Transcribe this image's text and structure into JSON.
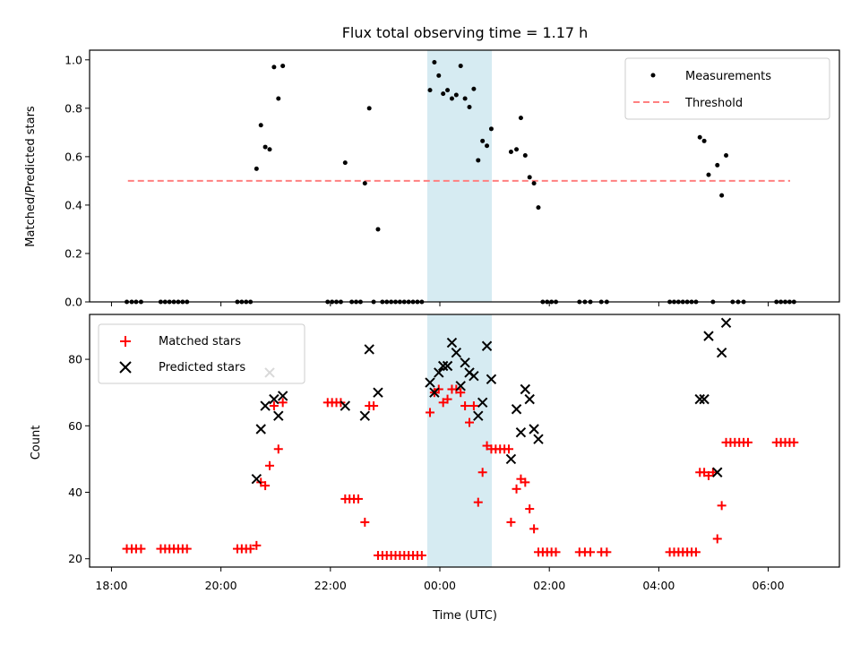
{
  "title": "Flux total observing time = 1.17 h",
  "colors": {
    "measurement": "#000000",
    "threshold": "#ff8080",
    "matched": "#ff0000",
    "predicted": "#000000",
    "window": "#add8e6"
  },
  "chart_data": [
    {
      "type": "scatter",
      "panel": "top",
      "ylabel": "Matched/Predicted stars",
      "xlim": [
        17.6,
        31.3
      ],
      "ylim": [
        0,
        1.04
      ],
      "yticks": [
        "0.0",
        "0.2",
        "0.4",
        "0.6",
        "0.8",
        "1.0"
      ],
      "shaded_interval": [
        23.77,
        24.95
      ],
      "legend": {
        "placement": "top-right",
        "entries": [
          "Measurements",
          "Threshold"
        ]
      },
      "threshold": {
        "name": "Threshold",
        "value": 0.5,
        "x": [
          18.3,
          30.4
        ]
      },
      "series": [
        {
          "name": "Measurements",
          "marker": "dot",
          "points": [
            [
              18.28,
              0
            ],
            [
              18.37,
              0
            ],
            [
              18.45,
              0
            ],
            [
              18.54,
              0
            ],
            [
              18.9,
              0
            ],
            [
              18.98,
              0
            ],
            [
              19.06,
              0
            ],
            [
              19.14,
              0
            ],
            [
              19.22,
              0
            ],
            [
              19.3,
              0
            ],
            [
              19.38,
              0
            ],
            [
              20.3,
              0
            ],
            [
              20.38,
              0
            ],
            [
              20.46,
              0
            ],
            [
              20.54,
              0
            ],
            [
              20.65,
              0.55
            ],
            [
              20.73,
              0.73
            ],
            [
              20.81,
              0.64
            ],
            [
              20.89,
              0.63
            ],
            [
              20.97,
              0.97
            ],
            [
              21.05,
              0.84
            ],
            [
              21.13,
              0.975
            ],
            [
              21.95,
              0
            ],
            [
              22.03,
              0
            ],
            [
              22.11,
              0
            ],
            [
              22.19,
              0
            ],
            [
              22.27,
              0.575
            ],
            [
              22.39,
              0
            ],
            [
              22.47,
              0
            ],
            [
              22.55,
              0
            ],
            [
              22.63,
              0.49
            ],
            [
              22.71,
              0.8
            ],
            [
              22.79,
              0
            ],
            [
              22.87,
              0.3
            ],
            [
              22.95,
              0
            ],
            [
              23.03,
              0
            ],
            [
              23.11,
              0
            ],
            [
              23.19,
              0
            ],
            [
              23.27,
              0
            ],
            [
              23.35,
              0
            ],
            [
              23.43,
              0
            ],
            [
              23.51,
              0
            ],
            [
              23.59,
              0
            ],
            [
              23.67,
              0
            ],
            [
              23.82,
              0.875
            ],
            [
              23.9,
              0.99
            ],
            [
              23.98,
              0.935
            ],
            [
              24.06,
              0.86
            ],
            [
              24.14,
              0.875
            ],
            [
              24.22,
              0.84
            ],
            [
              24.3,
              0.855
            ],
            [
              24.38,
              0.975
            ],
            [
              24.46,
              0.84
            ],
            [
              24.54,
              0.805
            ],
            [
              24.62,
              0.88
            ],
            [
              24.7,
              0.585
            ],
            [
              24.78,
              0.665
            ],
            [
              24.86,
              0.645
            ],
            [
              24.94,
              0.715
            ],
            [
              25.3,
              0.62
            ],
            [
              25.4,
              0.63
            ],
            [
              25.48,
              0.76
            ],
            [
              25.56,
              0.605
            ],
            [
              25.64,
              0.515
            ],
            [
              25.72,
              0.49
            ],
            [
              25.8,
              0.39
            ],
            [
              25.88,
              0
            ],
            [
              25.96,
              0
            ],
            [
              26.04,
              0
            ],
            [
              26.12,
              0
            ],
            [
              26.55,
              0
            ],
            [
              26.65,
              0
            ],
            [
              26.75,
              0
            ],
            [
              26.95,
              0
            ],
            [
              27.05,
              0
            ],
            [
              28.2,
              0
            ],
            [
              28.28,
              0
            ],
            [
              28.36,
              0
            ],
            [
              28.44,
              0
            ],
            [
              28.52,
              0
            ],
            [
              28.6,
              0
            ],
            [
              28.68,
              0
            ],
            [
              28.75,
              0.68
            ],
            [
              28.83,
              0.665
            ],
            [
              28.91,
              0.525
            ],
            [
              28.99,
              0
            ],
            [
              29.07,
              0.565
            ],
            [
              29.15,
              0.44
            ],
            [
              29.23,
              0.605
            ],
            [
              29.35,
              0
            ],
            [
              29.45,
              0
            ],
            [
              29.55,
              0
            ],
            [
              30.15,
              0
            ],
            [
              30.23,
              0
            ],
            [
              30.31,
              0
            ],
            [
              30.39,
              0
            ],
            [
              30.47,
              0
            ]
          ]
        }
      ]
    },
    {
      "type": "scatter",
      "panel": "bottom",
      "xlabel": "Time (UTC)",
      "ylabel": "Count",
      "xlim": [
        17.6,
        31.3
      ],
      "ylim": [
        17.5,
        93.5
      ],
      "xticks": [
        {
          "value": 18,
          "label": "18:00"
        },
        {
          "value": 20,
          "label": "20:00"
        },
        {
          "value": 22,
          "label": "22:00"
        },
        {
          "value": 24,
          "label": "00:00"
        },
        {
          "value": 26,
          "label": "02:00"
        },
        {
          "value": 28,
          "label": "04:00"
        },
        {
          "value": 30,
          "label": "06:00"
        }
      ],
      "yticks": [
        "20",
        "40",
        "60",
        "80"
      ],
      "shaded_interval": [
        23.77,
        24.95
      ],
      "legend": {
        "placement": "top-left",
        "entries": [
          "Matched stars",
          "Predicted stars"
        ]
      },
      "series": [
        {
          "name": "Matched stars",
          "marker": "plus",
          "points": [
            [
              18.28,
              23
            ],
            [
              18.37,
              23
            ],
            [
              18.45,
              23
            ],
            [
              18.54,
              23
            ],
            [
              18.9,
              23
            ],
            [
              18.98,
              23
            ],
            [
              19.06,
              23
            ],
            [
              19.14,
              23
            ],
            [
              19.22,
              23
            ],
            [
              19.3,
              23
            ],
            [
              19.38,
              23
            ],
            [
              20.3,
              23
            ],
            [
              20.38,
              23
            ],
            [
              20.46,
              23
            ],
            [
              20.54,
              23
            ],
            [
              20.65,
              24
            ],
            [
              20.73,
              43
            ],
            [
              20.81,
              42
            ],
            [
              20.89,
              48
            ],
            [
              20.97,
              66
            ],
            [
              21.05,
              53
            ],
            [
              21.13,
              67
            ],
            [
              21.95,
              67
            ],
            [
              22.03,
              67
            ],
            [
              22.11,
              67
            ],
            [
              22.19,
              67
            ],
            [
              22.27,
              38
            ],
            [
              22.35,
              38
            ],
            [
              22.43,
              38
            ],
            [
              22.51,
              38
            ],
            [
              22.63,
              31
            ],
            [
              22.71,
              66
            ],
            [
              22.79,
              66
            ],
            [
              22.87,
              21
            ],
            [
              22.95,
              21
            ],
            [
              23.03,
              21
            ],
            [
              23.11,
              21
            ],
            [
              23.19,
              21
            ],
            [
              23.27,
              21
            ],
            [
              23.35,
              21
            ],
            [
              23.43,
              21
            ],
            [
              23.51,
              21
            ],
            [
              23.59,
              21
            ],
            [
              23.67,
              21
            ],
            [
              23.82,
              64
            ],
            [
              23.9,
              70
            ],
            [
              23.98,
              71
            ],
            [
              24.06,
              67
            ],
            [
              24.14,
              68
            ],
            [
              24.22,
              71
            ],
            [
              24.3,
              71
            ],
            [
              24.38,
              70
            ],
            [
              24.46,
              66
            ],
            [
              24.54,
              61
            ],
            [
              24.62,
              66
            ],
            [
              24.7,
              37
            ],
            [
              24.78,
              46
            ],
            [
              24.86,
              54
            ],
            [
              24.94,
              53
            ],
            [
              25.02,
              53
            ],
            [
              25.1,
              53
            ],
            [
              25.18,
              53
            ],
            [
              25.26,
              53
            ],
            [
              25.3,
              31
            ],
            [
              25.4,
              41
            ],
            [
              25.48,
              44
            ],
            [
              25.56,
              43
            ],
            [
              25.64,
              35
            ],
            [
              25.72,
              29
            ],
            [
              25.8,
              22
            ],
            [
              25.88,
              22
            ],
            [
              25.96,
              22
            ],
            [
              26.04,
              22
            ],
            [
              26.12,
              22
            ],
            [
              26.55,
              22
            ],
            [
              26.65,
              22
            ],
            [
              26.75,
              22
            ],
            [
              26.95,
              22
            ],
            [
              27.05,
              22
            ],
            [
              28.2,
              22
            ],
            [
              28.28,
              22
            ],
            [
              28.36,
              22
            ],
            [
              28.44,
              22
            ],
            [
              28.52,
              22
            ],
            [
              28.6,
              22
            ],
            [
              28.68,
              22
            ],
            [
              28.75,
              46
            ],
            [
              28.83,
              46
            ],
            [
              28.91,
              45
            ],
            [
              28.99,
              46
            ],
            [
              29.07,
              26
            ],
            [
              29.15,
              36
            ],
            [
              29.23,
              55
            ],
            [
              29.31,
              55
            ],
            [
              29.39,
              55
            ],
            [
              29.47,
              55
            ],
            [
              29.55,
              55
            ],
            [
              29.63,
              55
            ],
            [
              30.15,
              55
            ],
            [
              30.23,
              55
            ],
            [
              30.31,
              55
            ],
            [
              30.39,
              55
            ],
            [
              30.47,
              55
            ]
          ]
        },
        {
          "name": "Predicted stars",
          "marker": "x",
          "points": [
            [
              20.65,
              44
            ],
            [
              20.73,
              59
            ],
            [
              20.81,
              66
            ],
            [
              20.89,
              76
            ],
            [
              20.97,
              68
            ],
            [
              21.05,
              63
            ],
            [
              21.13,
              69
            ],
            [
              22.27,
              66
            ],
            [
              22.63,
              63
            ],
            [
              22.71,
              83
            ],
            [
              22.87,
              70
            ],
            [
              23.82,
              73
            ],
            [
              23.9,
              70
            ],
            [
              23.98,
              76
            ],
            [
              24.06,
              78
            ],
            [
              24.14,
              78
            ],
            [
              24.22,
              85
            ],
            [
              24.3,
              82
            ],
            [
              24.38,
              72
            ],
            [
              24.46,
              79
            ],
            [
              24.54,
              76
            ],
            [
              24.62,
              75
            ],
            [
              24.7,
              63
            ],
            [
              24.78,
              67
            ],
            [
              24.86,
              84
            ],
            [
              24.94,
              74
            ],
            [
              25.3,
              50
            ],
            [
              25.4,
              65
            ],
            [
              25.48,
              58
            ],
            [
              25.56,
              71
            ],
            [
              25.64,
              68
            ],
            [
              25.72,
              59
            ],
            [
              25.8,
              56
            ],
            [
              28.75,
              68
            ],
            [
              28.83,
              68
            ],
            [
              28.91,
              87
            ],
            [
              29.07,
              46
            ],
            [
              29.15,
              82
            ],
            [
              29.23,
              91
            ]
          ]
        }
      ]
    }
  ]
}
